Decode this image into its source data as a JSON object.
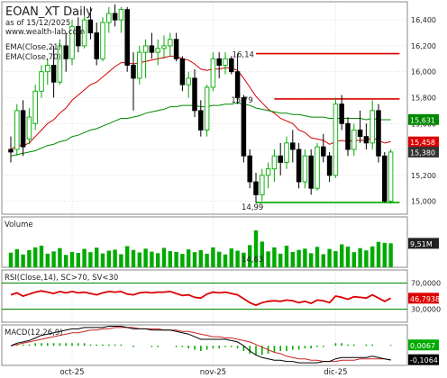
{
  "header": {
    "title": "EOAN_XT Daily",
    "subtitle": "as of 15/12/2025",
    "source": "www.wealth-lab.com"
  },
  "indicators": {
    "ema21_label": "EMA(Close,21)",
    "ema70_label": "EMA(Close,70)",
    "volume_label": "Volume",
    "rsi_label": "RSI(Close,14), SC>70, SV<30",
    "macd_label": "MACD(12,26,9)"
  },
  "colors": {
    "up": "#00aa00",
    "down": "#000000",
    "ema21": "#d40000",
    "ema70": "#008800",
    "rsi": "#dd0000",
    "macd": "#000000",
    "signal": "#cc2222",
    "hist": "#00aa00",
    "frame": "#888888",
    "grid": "#cccccc"
  },
  "chart_data": [
    {
      "type": "candlestick",
      "panel": "price",
      "title": "EOAN_XT Daily",
      "ylim": [
        14.9,
        16.54
      ],
      "yticks": [
        "15,000",
        "15,200",
        "15,400",
        "15,600",
        "15,800",
        "16,000",
        "16,200",
        "16,400"
      ],
      "x_ticks": [
        {
          "label": "oct-25",
          "index": 10
        },
        {
          "label": "nov-25",
          "index": 33
        },
        {
          "label": "dic-25",
          "index": 53
        }
      ],
      "annotations": [
        {
          "label": "16,14",
          "index": 37
        },
        {
          "label": "15,79",
          "index": 38
        },
        {
          "label": "14,99",
          "index": 40
        }
      ],
      "levels": [
        {
          "value": 16.14,
          "from": 40,
          "to": 63,
          "color": "#e00000"
        },
        {
          "value": 15.79,
          "from": 43,
          "to": 63,
          "color": "#e00000"
        },
        {
          "value": 14.99,
          "from": 40,
          "to": 63,
          "color": "#00aa00"
        }
      ],
      "value_tags": [
        {
          "label": "15,631",
          "value": 15.631,
          "color": "#008800"
        },
        {
          "label": "15,458",
          "value": 15.458,
          "color": "#dd0000"
        },
        {
          "label": "15,380",
          "value": 15.38,
          "color": "#333333"
        }
      ],
      "candles": [
        [
          15.4,
          15.5,
          15.3,
          15.38
        ],
        [
          15.4,
          15.75,
          15.35,
          15.7
        ],
        [
          15.7,
          15.78,
          15.35,
          15.42
        ],
        [
          15.48,
          15.72,
          15.44,
          15.65
        ],
        [
          15.6,
          15.9,
          15.55,
          15.85
        ],
        [
          15.85,
          16.05,
          15.8,
          16.0
        ],
        [
          16.0,
          16.1,
          15.9,
          16.05
        ],
        [
          16.05,
          16.2,
          15.8,
          15.92
        ],
        [
          15.92,
          16.25,
          15.9,
          16.2
        ],
        [
          16.2,
          16.3,
          16.0,
          16.1
        ],
        [
          16.1,
          16.4,
          16.05,
          16.35
        ],
        [
          16.35,
          16.42,
          16.15,
          16.2
        ],
        [
          16.2,
          16.44,
          16.18,
          16.4
        ],
        [
          16.4,
          16.5,
          16.25,
          16.3
        ],
        [
          16.3,
          16.38,
          16.05,
          16.1
        ],
        [
          16.1,
          16.42,
          16.08,
          16.38
        ],
        [
          16.38,
          16.5,
          16.3,
          16.45
        ],
        [
          16.45,
          16.52,
          16.35,
          16.4
        ],
        [
          16.4,
          16.5,
          16.3,
          16.48
        ],
        [
          16.48,
          16.5,
          16.0,
          16.05
        ],
        [
          16.05,
          16.15,
          15.7,
          15.95
        ],
        [
          15.95,
          16.2,
          15.9,
          16.15
        ],
        [
          16.15,
          16.25,
          15.95,
          16.2
        ],
        [
          16.2,
          16.3,
          16.1,
          16.15
        ],
        [
          16.15,
          16.25,
          16.05,
          16.18
        ],
        [
          16.18,
          16.28,
          16.1,
          16.2
        ],
        [
          16.2,
          16.3,
          16.12,
          16.25
        ],
        [
          16.25,
          16.3,
          16.08,
          16.1
        ],
        [
          16.1,
          16.12,
          15.85,
          15.9
        ],
        [
          15.9,
          16.0,
          15.8,
          15.95
        ],
        [
          15.95,
          16.02,
          15.65,
          15.7
        ],
        [
          15.7,
          15.78,
          15.5,
          15.55
        ],
        [
          15.55,
          15.9,
          15.5,
          15.88
        ],
        [
          15.88,
          16.15,
          15.85,
          16.1
        ],
        [
          16.1,
          16.15,
          15.95,
          16.05
        ],
        [
          16.05,
          16.15,
          15.98,
          16.1
        ],
        [
          16.1,
          16.12,
          15.98,
          16.0
        ],
        [
          16.0,
          16.14,
          15.75,
          15.8
        ],
        [
          15.8,
          15.82,
          15.3,
          15.35
        ],
        [
          15.35,
          15.4,
          15.1,
          15.15
        ],
        [
          15.15,
          15.22,
          14.99,
          15.05
        ],
        [
          15.05,
          15.25,
          15.0,
          15.2
        ],
        [
          15.2,
          15.3,
          15.1,
          15.25
        ],
        [
          15.25,
          15.4,
          15.15,
          15.35
        ],
        [
          15.35,
          15.45,
          15.2,
          15.3
        ],
        [
          15.3,
          15.5,
          15.25,
          15.45
        ],
        [
          15.45,
          15.55,
          15.3,
          15.4
        ],
        [
          15.4,
          15.45,
          15.1,
          15.15
        ],
        [
          15.15,
          15.4,
          15.1,
          15.35
        ],
        [
          15.35,
          15.4,
          15.05,
          15.1
        ],
        [
          15.1,
          15.45,
          15.08,
          15.42
        ],
        [
          15.42,
          15.52,
          15.3,
          15.35
        ],
        [
          15.35,
          15.38,
          15.15,
          15.2
        ],
        [
          15.2,
          15.8,
          15.18,
          15.75
        ],
        [
          15.75,
          15.82,
          15.55,
          15.6
        ],
        [
          15.6,
          15.65,
          15.35,
          15.4
        ],
        [
          15.4,
          15.6,
          15.35,
          15.55
        ],
        [
          15.55,
          15.7,
          15.45,
          15.5
        ],
        [
          15.5,
          15.6,
          15.4,
          15.45
        ],
        [
          15.45,
          15.78,
          15.4,
          15.7
        ],
        [
          15.7,
          15.75,
          15.3,
          15.35
        ],
        [
          15.35,
          15.38,
          14.99,
          15.0
        ],
        [
          15.0,
          15.4,
          14.98,
          15.38
        ]
      ]
    },
    {
      "type": "line",
      "panel": "price",
      "series": [
        {
          "name": "EMA(Close,21)",
          "values": [
            15.4,
            15.43,
            15.43,
            15.45,
            15.5,
            15.55,
            15.6,
            15.63,
            15.68,
            15.72,
            15.78,
            15.82,
            15.86,
            15.9,
            15.92,
            15.96,
            16.0,
            16.04,
            16.07,
            16.07,
            16.06,
            16.07,
            16.08,
            16.09,
            16.1,
            16.11,
            16.12,
            16.12,
            16.1,
            16.09,
            16.06,
            16.02,
            16.01,
            16.02,
            16.02,
            16.03,
            16.03,
            16.01,
            15.95,
            15.88,
            15.81,
            15.76,
            15.71,
            15.68,
            15.64,
            15.62,
            15.6,
            15.55,
            15.53,
            15.49,
            15.48,
            15.47,
            15.44,
            15.46,
            15.47,
            15.46,
            15.47,
            15.47,
            15.47,
            15.49,
            15.47,
            15.45,
            15.46
          ]
        },
        {
          "name": "EMA(Close,70)",
          "values": [
            15.35,
            15.36,
            15.37,
            15.38,
            15.39,
            15.41,
            15.43,
            15.44,
            15.46,
            15.47,
            15.5,
            15.51,
            15.53,
            15.55,
            15.56,
            15.58,
            15.6,
            15.62,
            15.64,
            15.64,
            15.65,
            15.66,
            15.68,
            15.69,
            15.7,
            15.71,
            15.73,
            15.73,
            15.74,
            15.74,
            15.74,
            15.73,
            15.73,
            15.74,
            15.74,
            15.75,
            15.75,
            15.76,
            15.75,
            15.74,
            15.72,
            15.71,
            15.7,
            15.69,
            15.68,
            15.68,
            15.67,
            15.67,
            15.66,
            15.65,
            15.65,
            15.65,
            15.64,
            15.64,
            15.64,
            15.64,
            15.64,
            15.64,
            15.63,
            15.64,
            15.63,
            15.63,
            15.63
          ]
        }
      ]
    },
    {
      "type": "bar",
      "panel": "volume",
      "tag": "9,51M",
      "tag_value": 9.51,
      "annotation": {
        "label": "14,63",
        "index": 40
      },
      "ylim": [
        0,
        20
      ],
      "values": [
        5.8,
        7.2,
        5.1,
        6.8,
        7.9,
        8.6,
        5.4,
        6.3,
        7.6,
        4.9,
        6.1,
        5.7,
        7.3,
        6.0,
        7.8,
        5.5,
        6.6,
        7.0,
        5.2,
        8.4,
        6.9,
        5.9,
        7.4,
        6.2,
        5.6,
        7.7,
        6.4,
        6.1,
        5.3,
        7.1,
        6.0,
        6.8,
        5.4,
        7.9,
        6.2,
        5.1,
        7.5,
        6.6,
        5.8,
        8.8,
        14.63,
        10.2,
        6.3,
        7.9,
        5.4,
        8.6,
        6.1,
        6.9,
        7.4,
        5.6,
        8.1,
        5.2,
        7.3,
        6.4,
        9.1,
        8.2,
        6.0,
        7.6,
        6.7,
        8.3,
        10.1,
        9.7,
        9.51
      ]
    },
    {
      "type": "line",
      "panel": "rsi",
      "ylim": [
        10,
        90
      ],
      "yticks": [
        "30,0000",
        "70,0000"
      ],
      "tag": "46,7938",
      "tag_value": 46.79,
      "series": [
        {
          "name": "RSI(Close,14)",
          "values": [
            52,
            55,
            50,
            53,
            56,
            58,
            56,
            54,
            57,
            55,
            57,
            55,
            56,
            54,
            52,
            55,
            57,
            56,
            57,
            53,
            52,
            55,
            56,
            55,
            56,
            56,
            57,
            54,
            51,
            52,
            48,
            47,
            53,
            56,
            55,
            56,
            54,
            52,
            46,
            40,
            36,
            40,
            42,
            43,
            42,
            44,
            43,
            40,
            42,
            39,
            44,
            43,
            40,
            50,
            48,
            45,
            49,
            48,
            47,
            52,
            47,
            42,
            46.79
          ]
        }
      ]
    },
    {
      "type": "line",
      "panel": "macd",
      "ylim": [
        -0.15,
        0.16
      ],
      "tags": [
        {
          "label": "0,0067",
          "value": 0.0067,
          "color": "#00aa00"
        },
        {
          "label": "-0,1064",
          "value": -0.1064,
          "color": "#000000"
        }
      ],
      "series": [
        {
          "name": "MACD",
          "values": [
            0.0,
            0.02,
            0.03,
            0.04,
            0.06,
            0.08,
            0.09,
            0.1,
            0.11,
            0.12,
            0.13,
            0.13,
            0.14,
            0.14,
            0.14,
            0.14,
            0.15,
            0.15,
            0.15,
            0.14,
            0.13,
            0.13,
            0.13,
            0.12,
            0.12,
            0.12,
            0.12,
            0.11,
            0.1,
            0.09,
            0.07,
            0.05,
            0.05,
            0.05,
            0.05,
            0.05,
            0.04,
            0.03,
            0.0,
            -0.04,
            -0.07,
            -0.09,
            -0.1,
            -0.11,
            -0.11,
            -0.12,
            -0.12,
            -0.13,
            -0.13,
            -0.13,
            -0.13,
            -0.12,
            -0.12,
            -0.1,
            -0.09,
            -0.09,
            -0.09,
            -0.09,
            -0.09,
            -0.08,
            -0.09,
            -0.1,
            -0.1064
          ]
        },
        {
          "name": "Signal",
          "values": [
            0.0,
            0.01,
            0.02,
            0.03,
            0.04,
            0.05,
            0.06,
            0.07,
            0.08,
            0.09,
            0.1,
            0.1,
            0.11,
            0.12,
            0.12,
            0.13,
            0.13,
            0.14,
            0.14,
            0.14,
            0.14,
            0.13,
            0.13,
            0.13,
            0.13,
            0.12,
            0.12,
            0.12,
            0.11,
            0.11,
            0.1,
            0.09,
            0.08,
            0.07,
            0.07,
            0.06,
            0.06,
            0.05,
            0.04,
            0.03,
            0.01,
            -0.01,
            -0.03,
            -0.05,
            -0.06,
            -0.08,
            -0.09,
            -0.1,
            -0.1,
            -0.11,
            -0.11,
            -0.12,
            -0.12,
            -0.12,
            -0.11,
            -0.11,
            -0.11,
            -0.1,
            -0.1,
            -0.1,
            -0.1,
            -0.1,
            -0.11
          ]
        },
        {
          "name": "Histogram",
          "values": [
            0.0,
            0.01,
            0.01,
            0.01,
            0.02,
            0.02,
            0.02,
            0.02,
            0.02,
            0.02,
            0.02,
            0.02,
            0.02,
            0.01,
            0.01,
            0.01,
            0.01,
            0.01,
            0.01,
            0.0,
            -0.01,
            0.0,
            0.0,
            -0.01,
            -0.01,
            0.0,
            0.0,
            -0.01,
            -0.01,
            -0.02,
            -0.03,
            -0.04,
            -0.03,
            -0.02,
            -0.02,
            -0.01,
            -0.01,
            -0.02,
            -0.04,
            -0.06,
            -0.07,
            -0.07,
            -0.06,
            -0.05,
            -0.04,
            -0.04,
            -0.03,
            -0.03,
            -0.02,
            -0.02,
            -0.01,
            -0.01,
            0.0,
            0.02,
            0.02,
            0.01,
            0.01,
            0.0,
            0.01,
            0.01,
            0.0,
            0.0,
            0.0067
          ]
        }
      ]
    }
  ]
}
